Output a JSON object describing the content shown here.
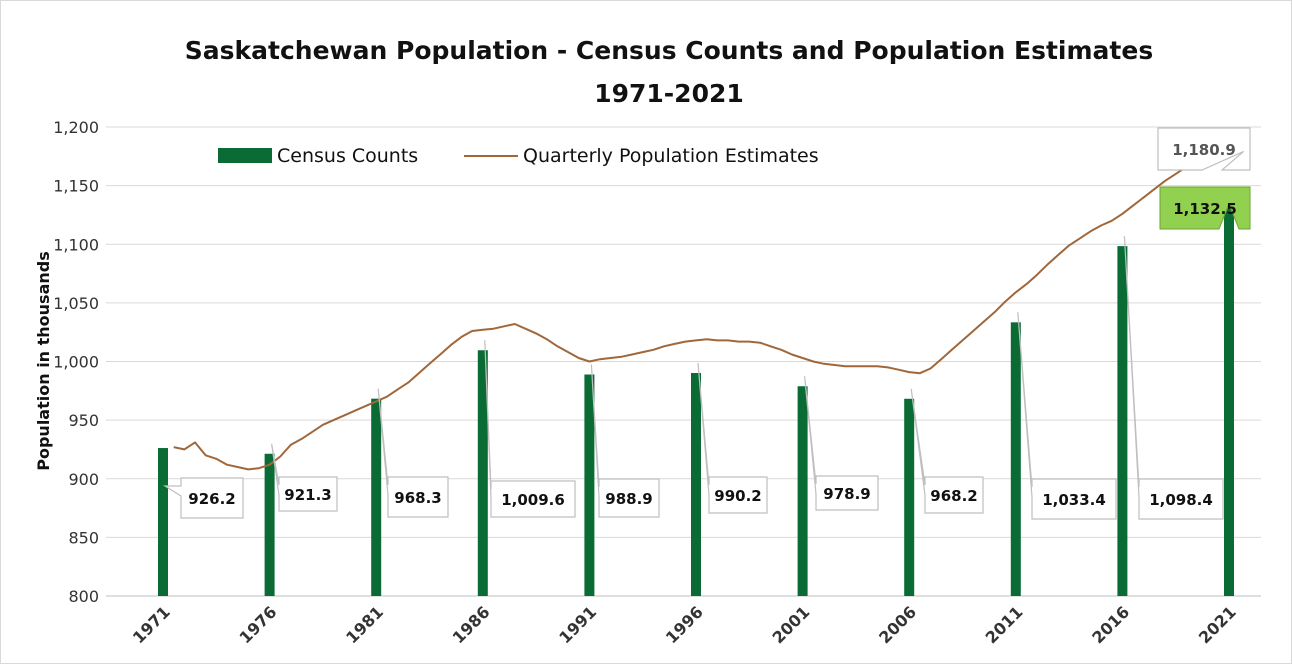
{
  "chart_data": {
    "type": "bar",
    "title": [
      "Saskatchewan Population - Census Counts and Population Estimates",
      "1971-2021"
    ],
    "xlabel": "",
    "ylabel": "Population in thousands",
    "ylim": [
      800,
      1200
    ],
    "yticks": [
      "800",
      "850",
      "900",
      "950",
      "1,000",
      "1,050",
      "1,100",
      "1,150",
      "1,200"
    ],
    "ytick_values": [
      800,
      850,
      900,
      950,
      1000,
      1050,
      1100,
      1150,
      1200
    ],
    "grid": true,
    "legend_position": "top-left",
    "categories": [
      "1971",
      "1976",
      "1981",
      "1986",
      "1991",
      "1996",
      "2001",
      "2006",
      "2011",
      "2016",
      "2021"
    ],
    "series": [
      {
        "name": "Census Counts",
        "type": "bar",
        "color": "#0a6b35",
        "values": [
          926.2,
          921.3,
          968.3,
          1009.6,
          988.9,
          990.2,
          978.9,
          968.2,
          1033.4,
          1098.4,
          1132.5
        ],
        "labels": [
          "926.2",
          "921.3",
          "968.3",
          "1,009.6",
          "988.9",
          "990.2",
          "978.9",
          "968.2",
          "1,033.4",
          "1,098.4",
          "1,132.5"
        ]
      },
      {
        "name": "Quarterly Population Estimates",
        "type": "line",
        "color": "#a0673a",
        "x": [
          1971.5,
          1972.0,
          1972.5,
          1973.0,
          1973.5,
          1974.0,
          1974.5,
          1975.0,
          1975.5,
          1976.0,
          1976.5,
          1977.0,
          1977.5,
          1978.0,
          1978.5,
          1979.0,
          1979.5,
          1980.0,
          1980.5,
          1981.0,
          1981.5,
          1982.0,
          1982.5,
          1983.0,
          1983.5,
          1984.0,
          1984.5,
          1985.0,
          1985.5,
          1986.0,
          1986.5,
          1987.0,
          1987.5,
          1988.0,
          1988.5,
          1989.0,
          1989.5,
          1990.0,
          1990.5,
          1991.0,
          1991.5,
          1992.0,
          1992.5,
          1993.0,
          1993.5,
          1994.0,
          1994.5,
          1995.0,
          1995.5,
          1996.0,
          1996.5,
          1997.0,
          1997.5,
          1998.0,
          1998.5,
          1999.0,
          1999.5,
          2000.0,
          2000.5,
          2001.0,
          2001.5,
          2002.0,
          2002.5,
          2003.0,
          2003.5,
          2004.0,
          2004.5,
          2005.0,
          2005.5,
          2006.0,
          2006.5,
          2007.0,
          2007.5,
          2008.0,
          2008.5,
          2009.0,
          2009.5,
          2010.0,
          2010.5,
          2011.0,
          2011.5,
          2012.0,
          2012.5,
          2013.0,
          2013.5,
          2014.0,
          2014.5,
          2015.0,
          2015.5,
          2016.0,
          2016.5,
          2017.0,
          2017.5,
          2018.0,
          2018.5,
          2019.0,
          2019.5,
          2020.0,
          2020.5,
          2021.0,
          2021.5
        ],
        "values": [
          927,
          925,
          931,
          920,
          917,
          912,
          910,
          908,
          909,
          912,
          919,
          929,
          934,
          940,
          946,
          950,
          954,
          958,
          962,
          966,
          970,
          976,
          982,
          990,
          998,
          1006,
          1014,
          1021,
          1026,
          1027,
          1028,
          1030,
          1032,
          1028,
          1024,
          1019,
          1013,
          1008,
          1003,
          1000,
          1002,
          1003,
          1004,
          1006,
          1008,
          1010,
          1013,
          1015,
          1017,
          1018,
          1019,
          1018,
          1018,
          1017,
          1017,
          1016,
          1013,
          1010,
          1006,
          1003,
          1000,
          998,
          997,
          996,
          996,
          996,
          996,
          995,
          993,
          991,
          990,
          994,
          1002,
          1010,
          1018,
          1026,
          1034,
          1042,
          1051,
          1059,
          1066,
          1074,
          1083,
          1091,
          1099,
          1105,
          1111,
          1116,
          1120,
          1126,
          1133,
          1140,
          1147,
          1154,
          1160,
          1166,
          1172,
          1177,
          1179,
          1179,
          1180.9
        ],
        "end_label": "1,180.9"
      }
    ]
  }
}
